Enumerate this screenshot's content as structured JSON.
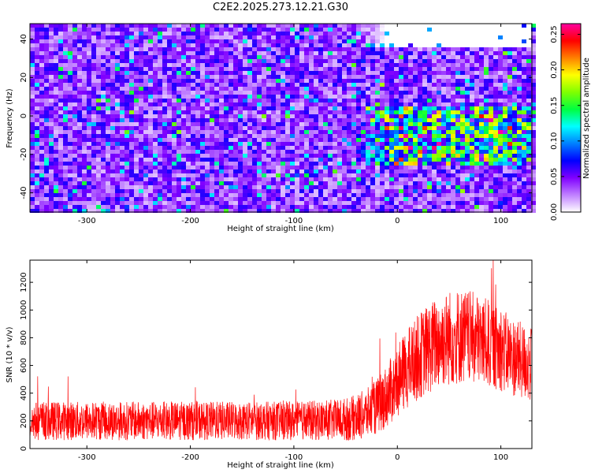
{
  "figure": {
    "title": "C2E2.2025.273.12.21.G30"
  },
  "chart_data": [
    {
      "type": "heatmap",
      "xlabel": "Height of straight line (km)",
      "ylabel": "Frequency (Hz)",
      "xlim": [
        -355,
        130
      ],
      "ylim": [
        -50,
        48
      ],
      "xticks": [
        -300,
        -200,
        -100,
        0,
        100
      ],
      "yticks": [
        -40,
        -20,
        0,
        20,
        40
      ],
      "colorbar": {
        "label": "Normalized spectral amplitude",
        "range": [
          0.0,
          0.265
        ],
        "ticks": [
          0.0,
          0.05,
          0.1,
          0.15,
          0.2,
          0.25
        ],
        "tick_labels": [
          "0.00",
          "0.05",
          "0.10",
          "0.15",
          "0.20",
          "0.25"
        ],
        "colormap": [
          "#ffffff",
          "#c080ff",
          "#8000ff",
          "#0000ff",
          "#0080ff",
          "#00ffff",
          "#00ff40",
          "#80ff00",
          "#ffff00",
          "#ff8000",
          "#ff0000",
          "#ff00a0"
        ]
      },
      "regions": [
        {
          "label": "low-amplitude band",
          "x_range": [
            -40,
            130
          ],
          "y_range": [
            35,
            48
          ],
          "level": 0.0
        },
        {
          "label": "peak band",
          "x_range": [
            -40,
            130
          ],
          "y_range": [
            -25,
            5
          ],
          "level": 0.12
        }
      ],
      "background_level": 0.04
    },
    {
      "type": "line",
      "series": [
        {
          "color": "#ff0000",
          "x": [
            -355,
            -300,
            -250,
            -200,
            -150,
            -100,
            -60,
            -45,
            -30,
            -20,
            -10,
            0,
            10,
            20,
            30,
            40,
            50,
            60,
            70,
            80,
            90,
            100,
            110,
            120,
            130
          ],
          "y_mean": [
            200,
            200,
            200,
            200,
            200,
            200,
            205,
            215,
            250,
            300,
            380,
            480,
            580,
            660,
            720,
            770,
            800,
            810,
            800,
            780,
            750,
            710,
            670,
            630,
            600
          ],
          "y_spread": [
            140,
            140,
            140,
            140,
            140,
            140,
            150,
            160,
            180,
            200,
            230,
            260,
            290,
            310,
            330,
            340,
            350,
            350,
            340,
            330,
            320,
            300,
            290,
            280,
            270
          ]
        }
      ],
      "xlabel": "Height of straight line (km)",
      "ylabel": "SNR (10 * v/v)",
      "xlim": [
        -355,
        130
      ],
      "ylim": [
        0,
        1360
      ],
      "xticks": [
        -300,
        -200,
        -100,
        0,
        100
      ],
      "yticks": [
        0,
        200,
        400,
        600,
        800,
        1000,
        1200
      ],
      "grid": false
    }
  ]
}
